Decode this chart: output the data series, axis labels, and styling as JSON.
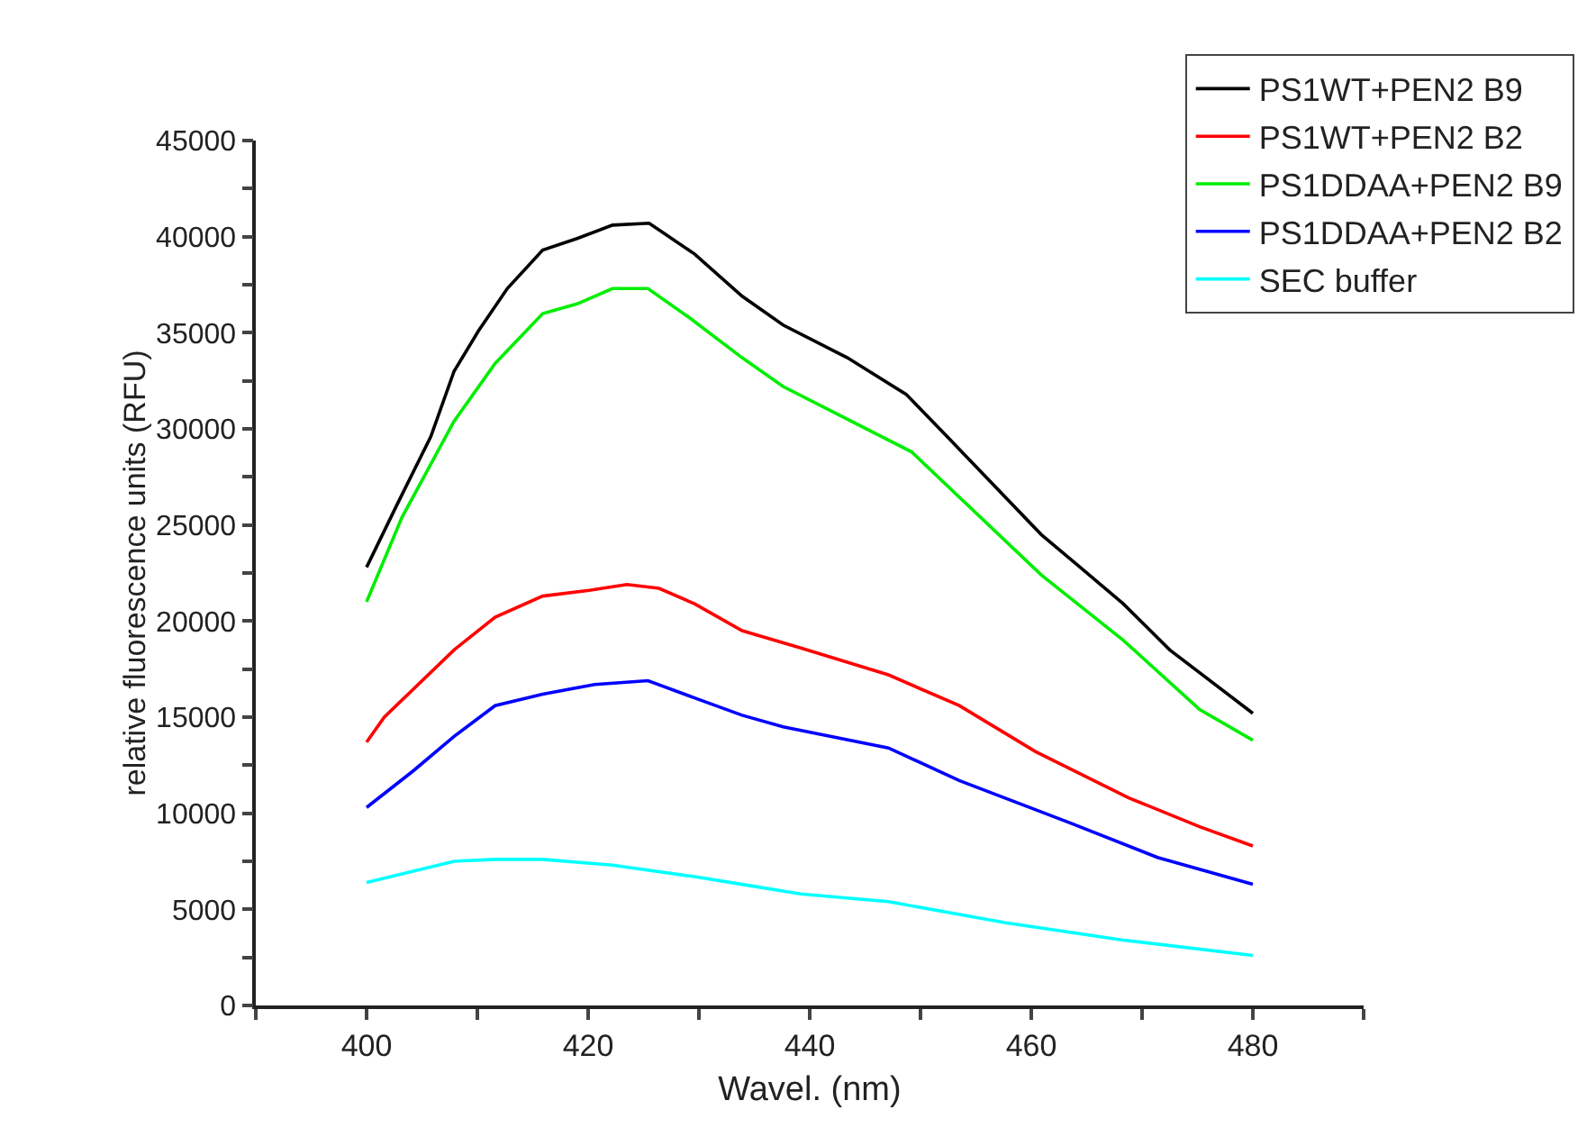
{
  "chart_data": {
    "type": "line",
    "xlabel": "Wavel. (nm)",
    "ylabel": "relative fluorescence units (RFU)",
    "xlim": [
      390,
      490
    ],
    "ylim": [
      0,
      45000
    ],
    "xticks": [
      {
        "value": 390,
        "label": null
      },
      400,
      {
        "value": 410,
        "label": null
      },
      420,
      {
        "value": 430,
        "label": null
      },
      440,
      {
        "value": 450,
        "label": null
      },
      460,
      {
        "value": 470,
        "label": null
      },
      480,
      {
        "value": 490,
        "label": null
      }
    ],
    "yticks": [
      0,
      {
        "value": 2500,
        "label": null
      },
      5000,
      {
        "value": 7500,
        "label": null
      },
      10000,
      {
        "value": 12500,
        "label": null
      },
      15000,
      {
        "value": 17500,
        "label": null
      },
      20000,
      {
        "value": 22500,
        "label": null
      },
      25000,
      {
        "value": 27500,
        "label": null
      },
      30000,
      {
        "value": 32500,
        "label": null
      },
      35000,
      {
        "value": 37500,
        "label": null
      },
      40000,
      {
        "value": 42500,
        "label": null
      },
      45000
    ],
    "grid": false,
    "legend": "top right",
    "marker": "none",
    "line_style": "solid",
    "series": [
      {
        "name": "PS1WT+PEN2 B9",
        "color": "#000000",
        "x": [
          400,
          402.7,
          405.8,
          407.9,
          410.1,
          412.7,
          415.9,
          419,
          422.2,
          425.5,
          429.6,
          433.9,
          437.6,
          443.4,
          448.7,
          452.4,
          460.9,
          464,
          468.3,
          472.5,
          480
        ],
        "values": [
          22800,
          26000,
          29600,
          33000,
          35100,
          37300,
          39300,
          39900,
          40600,
          40700,
          39100,
          36900,
          35400,
          33700,
          31800,
          29600,
          24500,
          23000,
          20900,
          18500,
          15200
        ]
      },
      {
        "name": "PS1WT+PEN2 B2",
        "color": "#ff0000",
        "x": [
          400,
          401.6,
          407.9,
          411.6,
          415.9,
          420.1,
          423.5,
          426.4,
          429.6,
          433.9,
          439.2,
          447.1,
          453.5,
          460.4,
          468.8,
          475.2,
          480
        ],
        "values": [
          13700,
          15000,
          18500,
          20200,
          21300,
          21600,
          21900,
          21700,
          20900,
          19500,
          18600,
          17200,
          15600,
          13200,
          10800,
          9300,
          8300
        ]
      },
      {
        "name": "PS1DDAA+PEN2 B9",
        "color": "#00ee00",
        "x": [
          400,
          403.2,
          407.9,
          411.6,
          415.9,
          419,
          422.2,
          425.4,
          429.1,
          433.9,
          437.6,
          449.2,
          460.9,
          468.3,
          475.2,
          480
        ],
        "values": [
          21000,
          25400,
          30400,
          33400,
          36000,
          36500,
          37300,
          37300,
          35800,
          33700,
          32200,
          28800,
          22400,
          19000,
          15400,
          13800
        ]
      },
      {
        "name": "PS1DDAA+PEN2 B2",
        "color": "#0000ff",
        "x": [
          400,
          404.2,
          407.9,
          411.6,
          415.9,
          420.6,
          425.4,
          429.6,
          433.9,
          437.6,
          447.1,
          453.5,
          463.5,
          471.4,
          480
        ],
        "values": [
          10300,
          12200,
          14000,
          15600,
          16200,
          16700,
          16900,
          16000,
          15100,
          14500,
          13400,
          11700,
          9500,
          7700,
          6300
        ]
      },
      {
        "name": "SEC buffer",
        "color": "#00ffff",
        "x": [
          400,
          407.9,
          411.6,
          415.9,
          422.2,
          429.6,
          433.9,
          439.2,
          447.1,
          457.7,
          468.3,
          480
        ],
        "values": [
          6400,
          7500,
          7600,
          7600,
          7300,
          6700,
          6300,
          5800,
          5400,
          4300,
          3400,
          2600
        ]
      }
    ]
  }
}
